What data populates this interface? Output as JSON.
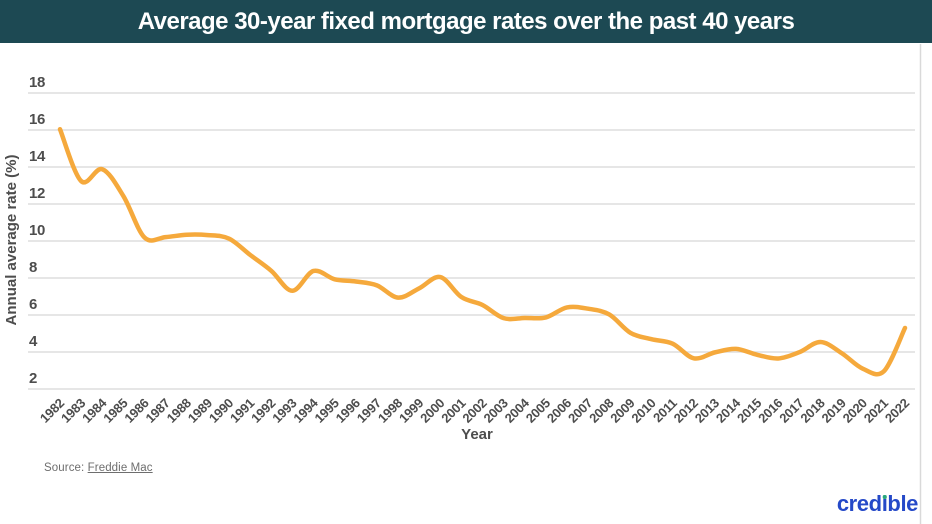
{
  "header": {
    "background_color": "#1D4953",
    "text_color": "#FFFFFF"
  },
  "chart_data": {
    "type": "line",
    "title": "Average 30-year fixed mortgage rates over the past 40 years",
    "xlabel": "Year",
    "ylabel": "Annual average rate (%)",
    "x": [
      "1982",
      "1983",
      "1984",
      "1985",
      "1986",
      "1987",
      "1988",
      "1989",
      "1990",
      "1991",
      "1992",
      "1993",
      "1994",
      "1995",
      "1996",
      "1997",
      "1998",
      "1999",
      "2000",
      "2001",
      "2002",
      "2003",
      "2004",
      "2005",
      "2006",
      "2007",
      "2008",
      "2009",
      "2010",
      "2011",
      "2012",
      "2013",
      "2014",
      "2015",
      "2016",
      "2017",
      "2018",
      "2019",
      "2020",
      "2021",
      "2022"
    ],
    "series": [
      {
        "name": "30-year fixed mortgage rate",
        "values": [
          16.04,
          13.24,
          13.88,
          12.43,
          10.19,
          10.21,
          10.34,
          10.32,
          10.13,
          9.25,
          8.39,
          7.31,
          8.38,
          7.93,
          7.81,
          7.6,
          6.94,
          7.44,
          8.05,
          6.97,
          6.54,
          5.83,
          5.84,
          5.87,
          6.41,
          6.34,
          6.03,
          5.04,
          4.69,
          4.45,
          3.66,
          3.98,
          4.17,
          3.85,
          3.65,
          3.99,
          4.54,
          3.94,
          3.1,
          2.96,
          5.3
        ]
      }
    ],
    "yticks": [
      18,
      16,
      14,
      12,
      10,
      8,
      6,
      4,
      2
    ],
    "ylim": [
      2,
      18
    ],
    "grid": "horizontal",
    "grid_color": "#DDDDDD",
    "line_color": "#F5A93C",
    "tick_color": "#4D4D4D",
    "legend": "none"
  },
  "footer": {
    "source_prefix": "Source: ",
    "source_link": "Freddie Mac",
    "brand": {
      "name": "credible",
      "color": "#2549C8",
      "dot_color": "#28A87E"
    }
  }
}
